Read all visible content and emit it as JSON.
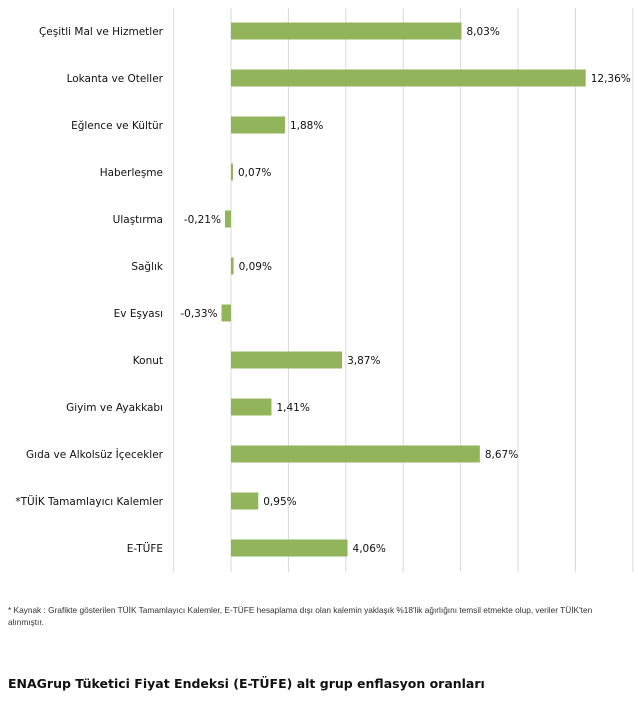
{
  "chart_data": {
    "type": "bar",
    "orientation": "horizontal",
    "categories": [
      "Çeşitli Mal ve Hizmetler",
      "Lokanta ve Oteller",
      "Eğlence ve Kültür",
      "Haberleşme",
      "Ulaştırma",
      "Sağlık",
      "Ev Eşyası",
      "Konut",
      "Giyim ve Ayakkabı",
      "Gıda ve Alkolsüz İçecekler",
      "*TÜİK Tamamlayıcı Kalemler",
      "E-TÜFE"
    ],
    "values": [
      8.03,
      12.36,
      1.88,
      0.07,
      -0.21,
      0.09,
      -0.33,
      3.87,
      1.41,
      8.67,
      0.95,
      4.06
    ],
    "value_labels": [
      "8,03%",
      "12,36%",
      "1,88%",
      "0,07%",
      "-0,21%",
      "0,09%",
      "-0,33%",
      "3,87%",
      "1,41%",
      "8,67%",
      "0,95%",
      "4,06%"
    ],
    "xlim": [
      -2,
      14
    ],
    "grid": true,
    "bar_color": "#92b55b",
    "grid_color": "#d9d9d9"
  },
  "footnote": "*  Kaynak : Grafikte gösterilen TÜİK Tamamlayıcı Kalemler, E-TÜFE hesaplama dışı olan kalemin yaklaşık %18'lik ağırlığını temsil etmekte olup, veriler TÜİK'ten alınmıştır.",
  "caption": "ENAGrup Tüketici Fiyat Endeksi (E-TÜFE) alt grup enflasyon oranları"
}
